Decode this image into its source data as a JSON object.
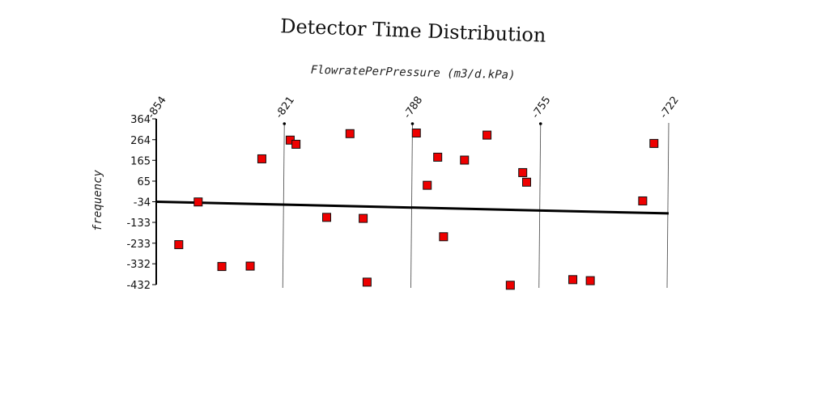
{
  "chart_data": {
    "type": "scatter",
    "title": "Detector Time Distribution",
    "xlabel": "FlowratePerPressure (m3/d.kPa)",
    "ylabel": "frequency",
    "xlim": [
      -854,
      -722
    ],
    "ylim": [
      -432,
      364
    ],
    "x_ticks": [
      -854,
      -821,
      -788,
      -755,
      -722
    ],
    "y_ticks": [
      364,
      264,
      165,
      65,
      -34,
      -133,
      -233,
      -332,
      -432
    ],
    "grid": "vertical lines at x ticks",
    "legend": "none",
    "colors": {
      "marker": "#ee0000",
      "marker_edge": "#111111",
      "line": "#000000",
      "axis": "#000000",
      "grid": "#555555"
    },
    "series": [
      {
        "values": [
          {
            "x": -848.2,
            "y": -240
          },
          {
            "x": -843.2,
            "y": -35
          },
          {
            "x": -837.1,
            "y": -345
          },
          {
            "x": -829.8,
            "y": -343
          },
          {
            "x": -826.8,
            "y": 172
          },
          {
            "x": -819.5,
            "y": 262
          },
          {
            "x": -818.0,
            "y": 242
          },
          {
            "x": -810.1,
            "y": -109
          },
          {
            "x": -804.1,
            "y": 293
          },
          {
            "x": -800.7,
            "y": -114
          },
          {
            "x": -799.7,
            "y": -420
          },
          {
            "x": -787.0,
            "y": 296
          },
          {
            "x": -784.2,
            "y": 45
          },
          {
            "x": -781.5,
            "y": 180
          },
          {
            "x": -780.0,
            "y": -202
          },
          {
            "x": -774.6,
            "y": 166
          },
          {
            "x": -768.8,
            "y": 286
          },
          {
            "x": -762.8,
            "y": -435
          },
          {
            "x": -759.6,
            "y": 106
          },
          {
            "x": -758.6,
            "y": 60
          },
          {
            "x": -746.7,
            "y": -408
          },
          {
            "x": -742.2,
            "y": -413
          },
          {
            "x": -728.7,
            "y": -30
          },
          {
            "x": -725.8,
            "y": 246
          }
        ]
      }
    ],
    "trend_line": {
      "x": [
        -854,
        -722
      ],
      "y": [
        -34,
        -90
      ]
    }
  }
}
